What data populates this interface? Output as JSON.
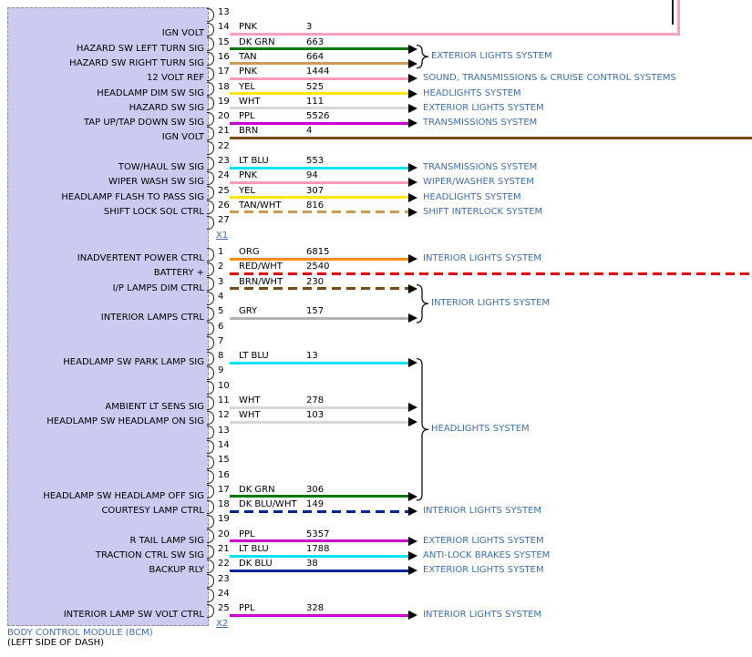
{
  "module": {
    "name": "BODY CONTROL MODULE (BCM)",
    "location": "(LEFT SIDE OF DASH)"
  },
  "colors": {
    "label_blue": "#3f6fb0",
    "module_fill": "#cbcbf2",
    "module_border": "#8c8c8c"
  },
  "wire_colors": {
    "PNK": "#ff9cc0",
    "DK GRN": "#007500",
    "TAN": "#cf9b52",
    "YEL": "#ffe800",
    "WHT": "#d8d8d8",
    "PPL": "#cf00cf",
    "BRN": "#7b4a12",
    "LT BLU": "#00e0ff",
    "ORG": "#ff8c00",
    "RED": "#ea0000",
    "GRY": "#b3b3b3",
    "DK BLU": "#00259b"
  },
  "groups": {
    "x1-ext": {
      "label": "EXTERIOR LIGHTS SYSTEM"
    },
    "x2-int": {
      "label": "INTERIOR LIGHTS SYSTEM"
    },
    "x2-head": {
      "label": "HEADLIGHTS SYSTEM"
    }
  },
  "connectors": [
    {
      "id": "X1",
      "top_center": 14,
      "pins": [
        {
          "n": "13"
        },
        {
          "n": "14",
          "color": "PNK",
          "circuit": "3",
          "signal": "IGN VOLT",
          "route": "top"
        },
        {
          "n": "15",
          "color": "DK GRN",
          "circuit": "663",
          "signal": "HAZARD SW LEFT TURN SIG",
          "route": "arrow",
          "group": "x1-ext"
        },
        {
          "n": "16",
          "color": "TAN",
          "circuit": "664",
          "signal": "HAZARD SW RIGHT TURN SIG",
          "route": "arrow",
          "group": "x1-ext"
        },
        {
          "n": "17",
          "color": "PNK",
          "circuit": "1444",
          "signal": "12 VOLT REF",
          "route": "arrow",
          "dest": "SOUND, TRANSMISSIONS & CRUISE CONTROL SYSTEMS"
        },
        {
          "n": "18",
          "color": "YEL",
          "circuit": "525",
          "signal": "HEADLAMP DIM SW SIG",
          "route": "arrow",
          "dest": "HEADLIGHTS SYSTEM"
        },
        {
          "n": "19",
          "color": "WHT",
          "circuit": "111",
          "signal": "HAZARD SW SIG",
          "route": "arrow",
          "dest": "EXTERIOR LIGHTS SYSTEM"
        },
        {
          "n": "20",
          "color": "PPL",
          "circuit": "5526",
          "signal": "TAP UP/TAP DOWN SW SIG",
          "route": "arrow",
          "dest": "TRANSMISSIONS SYSTEM"
        },
        {
          "n": "21",
          "color": "BRN",
          "circuit": "4",
          "signal": "IGN VOLT",
          "route": "edge"
        },
        {
          "n": "22"
        },
        {
          "n": "23",
          "color": "LT BLU",
          "circuit": "553",
          "signal": "TOW/HAUL SW SIG",
          "route": "arrow",
          "dest": "TRANSMISSIONS SYSTEM"
        },
        {
          "n": "24",
          "color": "PNK",
          "circuit": "94",
          "signal": "WIPER WASH SW SIG",
          "route": "arrow",
          "dest": "WIPER/WASHER SYSTEM"
        },
        {
          "n": "25",
          "color": "YEL",
          "circuit": "307",
          "signal": "HEADLAMP FLASH TO PASS SIG",
          "route": "arrow",
          "dest": "HEADLIGHTS SYSTEM"
        },
        {
          "n": "26",
          "color": "TAN/WHT",
          "circuit": "816",
          "signal": "SHIFT LOCK SOL CTRL",
          "route": "arrow",
          "dest": "SHIFT INTERLOCK SYSTEM"
        },
        {
          "n": "27"
        }
      ]
    },
    {
      "id": "X2",
      "top_center": 277,
      "pins": [
        {
          "n": "1",
          "color": "ORG",
          "circuit": "6815",
          "signal": "INADVERTENT POWER CTRL",
          "route": "arrow",
          "dest": "INTERIOR LIGHTS SYSTEM"
        },
        {
          "n": "2",
          "color": "RED/WHT",
          "circuit": "2540",
          "signal": "BATTERY +",
          "route": "edge"
        },
        {
          "n": "3",
          "color": "BRN/WHT",
          "circuit": "230",
          "signal": "I/P LAMPS DIM CTRL",
          "route": "arrow",
          "group": "x2-int"
        },
        {
          "n": "4"
        },
        {
          "n": "5",
          "color": "GRY",
          "circuit": "157",
          "signal": "INTERIOR LAMPS CTRL",
          "route": "arrow",
          "group": "x2-int"
        },
        {
          "n": "6"
        },
        {
          "n": "7"
        },
        {
          "n": "8",
          "color": "LT BLU",
          "circuit": "13",
          "signal": "HEADLAMP SW PARK LAMP SIG",
          "route": "arrow",
          "group": "x2-head"
        },
        {
          "n": "9"
        },
        {
          "n": "10"
        },
        {
          "n": "11",
          "color": "WHT",
          "circuit": "278",
          "signal": "AMBIENT LT SENS SIG",
          "route": "arrow",
          "group": "x2-head"
        },
        {
          "n": "12",
          "color": "WHT",
          "circuit": "103",
          "signal": "HEADLAMP SW HEADLAMP ON SIG",
          "route": "arrow",
          "group": "x2-head"
        },
        {
          "n": "13"
        },
        {
          "n": "14"
        },
        {
          "n": "15"
        },
        {
          "n": "16"
        },
        {
          "n": "17",
          "color": "DK GRN",
          "circuit": "306",
          "signal": "HEADLAMP SW HEADLAMP OFF SIG",
          "route": "arrow",
          "group": "x2-head"
        },
        {
          "n": "18",
          "color": "DK BLU/WHT",
          "circuit": "149",
          "signal": "COURTESY LAMP CTRL",
          "route": "arrow",
          "dest": "INTERIOR LIGHTS SYSTEM"
        },
        {
          "n": "19"
        },
        {
          "n": "20",
          "color": "PPL",
          "circuit": "5357",
          "signal": "R TAIL LAMP SIG",
          "route": "arrow",
          "dest": "EXTERIOR LIGHTS SYSTEM"
        },
        {
          "n": "21",
          "color": "LT BLU",
          "circuit": "1788",
          "signal": "TRACTION CTRL SW SIG",
          "route": "arrow",
          "dest": "ANTI-LOCK BRAKES SYSTEM"
        },
        {
          "n": "22",
          "color": "DK BLU",
          "circuit": "38",
          "signal": "BACKUP RLY",
          "route": "arrow",
          "dest": "EXTERIOR LIGHTS SYSTEM"
        },
        {
          "n": "23"
        },
        {
          "n": "24"
        },
        {
          "n": "25",
          "color": "PPL",
          "circuit": "328",
          "signal": "INTERIOR LAMP SW VOLT CTRL",
          "route": "arrow",
          "dest": "INTERIOR LIGHTS SYSTEM"
        }
      ]
    }
  ]
}
